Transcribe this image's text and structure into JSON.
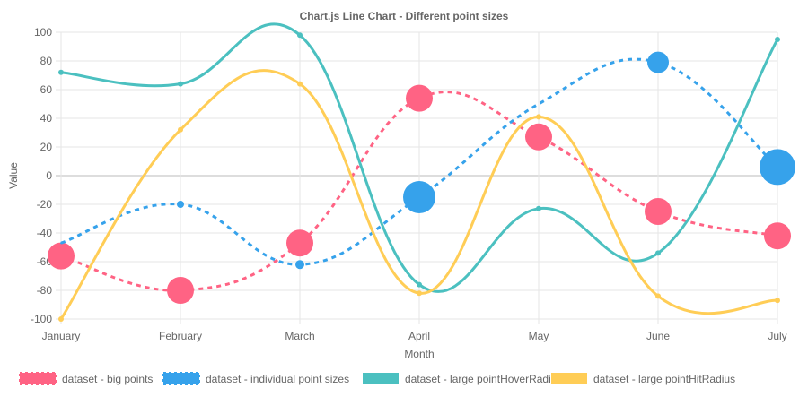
{
  "chart_data": {
    "type": "line",
    "title": "Chart.js Line Chart - Different point sizes",
    "xlabel": "Month",
    "ylabel": "Value",
    "categories": [
      "January",
      "February",
      "March",
      "April",
      "May",
      "June",
      "July"
    ],
    "ylim": [
      -100,
      100
    ],
    "yticks": [
      100,
      80,
      60,
      40,
      20,
      0,
      -20,
      -40,
      -60,
      -80,
      -100
    ],
    "grid": true,
    "legend": "bottom",
    "series": [
      {
        "name": "dataset - big points",
        "color": "#ff6384",
        "dashed": true,
        "values": [
          -56,
          -80,
          -47,
          54,
          27,
          -25,
          -42
        ],
        "point_radius": [
          15,
          15,
          15,
          15,
          15,
          15,
          15
        ]
      },
      {
        "name": "dataset - individual point sizes",
        "color": "#36a2eb",
        "dashed": true,
        "values": [
          -47,
          -20,
          -62,
          -15,
          50,
          79,
          6
        ],
        "point_radius": [
          1,
          4,
          5,
          18,
          0,
          12,
          20
        ]
      },
      {
        "name": "dataset - large pointHoverRadius",
        "color": "#4bc0c0",
        "dashed": false,
        "values": [
          72,
          64,
          98,
          -76,
          -23,
          -54,
          95
        ],
        "point_radius": [
          3,
          3,
          3,
          3,
          3,
          3,
          3
        ]
      },
      {
        "name": "dataset - large pointHitRadius",
        "color": "#ffcd56",
        "dashed": false,
        "values": [
          -100,
          32,
          64,
          -82,
          41,
          -84,
          -87
        ],
        "point_radius": [
          3,
          3,
          3,
          3,
          3,
          3,
          3
        ]
      }
    ]
  }
}
